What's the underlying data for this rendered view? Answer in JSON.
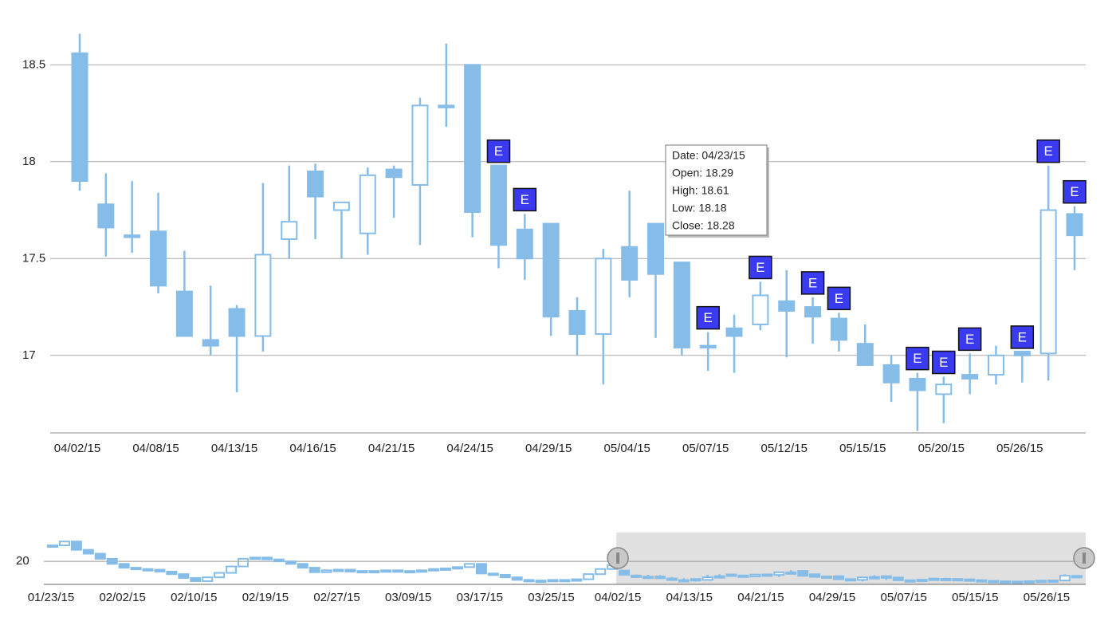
{
  "chart_data": [
    {
      "type": "candlestick",
      "categories": [
        "04/02/15",
        null,
        null,
        "04/08/15",
        null,
        null,
        "04/13/15",
        null,
        null,
        "04/16/15",
        null,
        null,
        "04/21/15",
        null,
        null,
        "04/24/15",
        null,
        null,
        "04/29/15",
        null,
        null,
        "05/04/15",
        null,
        null,
        "05/07/15",
        null,
        null,
        "05/12/15",
        null,
        null,
        "05/15/15",
        null,
        null,
        "05/20/15",
        null,
        null,
        "05/26/15",
        null,
        null
      ],
      "open": [
        18.56,
        17.78,
        17.62,
        17.64,
        17.33,
        17.08,
        17.24,
        17.1,
        17.6,
        17.95,
        17.75,
        17.63,
        17.96,
        17.88,
        18.29,
        18.5,
        17.98,
        17.65,
        17.68,
        17.23,
        17.11,
        17.56,
        17.68,
        17.48,
        17.05,
        17.14,
        17.16,
        17.28,
        17.25,
        17.19,
        17.06,
        16.95,
        16.88,
        16.8,
        16.9,
        16.9,
        17.02,
        17.01,
        17.73
      ],
      "high": [
        18.66,
        17.94,
        17.9,
        17.84,
        17.54,
        17.36,
        17.26,
        17.89,
        17.98,
        17.99,
        17.79,
        17.97,
        17.98,
        18.33,
        18.61,
        18.5,
        17.98,
        17.73,
        17.68,
        17.3,
        17.55,
        17.85,
        17.68,
        17.48,
        17.12,
        17.21,
        17.38,
        17.44,
        17.3,
        17.22,
        17.16,
        17.0,
        16.91,
        16.89,
        17.01,
        17.05,
        17.02,
        17.98,
        17.77
      ],
      "low": [
        17.85,
        17.51,
        17.53,
        17.32,
        17.1,
        17.0,
        16.81,
        17.02,
        17.5,
        17.6,
        17.5,
        17.52,
        17.71,
        17.57,
        18.18,
        17.61,
        17.45,
        17.39,
        17.1,
        17.0,
        16.85,
        17.3,
        17.09,
        17.0,
        16.92,
        16.91,
        17.13,
        16.99,
        17.06,
        17.02,
        16.95,
        16.76,
        16.61,
        16.65,
        16.8,
        16.85,
        16.86,
        16.87,
        17.44
      ],
      "close": [
        17.9,
        17.66,
        17.61,
        17.36,
        17.1,
        17.05,
        17.1,
        17.52,
        17.69,
        17.82,
        17.79,
        17.93,
        17.92,
        18.29,
        18.28,
        17.74,
        17.57,
        17.5,
        17.2,
        17.11,
        17.5,
        17.39,
        17.42,
        17.04,
        17.04,
        17.1,
        17.31,
        17.23,
        17.2,
        17.08,
        16.95,
        16.86,
        16.82,
        16.85,
        16.88,
        17.0,
        17.0,
        17.75,
        17.62
      ],
      "color": "#86bce8",
      "ylim": [
        16.6,
        18.67
      ],
      "yticks": [
        17,
        17.5,
        18,
        18.5
      ],
      "grid": true,
      "event_label": "E",
      "events": [
        16,
        17,
        24,
        26,
        28,
        29,
        32,
        33,
        34,
        36,
        37,
        38
      ],
      "tooltip": [
        "Date: 04/23/15",
        "Open: 18.29",
        "High: 18.61",
        "Low: 18.18",
        "Close: 18.28"
      ]
    },
    {
      "type": "step",
      "categories": [
        "01/23/15",
        null,
        null,
        null,
        null,
        null,
        "02/02/15",
        null,
        null,
        null,
        null,
        null,
        "02/10/15",
        null,
        null,
        null,
        null,
        null,
        "02/19/15",
        null,
        null,
        null,
        null,
        null,
        "02/27/15",
        null,
        null,
        null,
        null,
        null,
        "03/09/15",
        null,
        null,
        null,
        null,
        null,
        "03/17/15",
        null,
        null,
        null,
        null,
        null,
        "03/25/15",
        null,
        null,
        null,
        null,
        null
      ],
      "values": [
        22.5,
        23.1,
        21.8,
        21.2,
        20.4,
        19.6,
        19.0,
        18.8,
        18.7,
        18.4,
        18.0,
        17.4,
        16.9,
        17.5,
        18.2,
        19.2,
        20.4,
        20.6,
        20.3,
        20.0,
        19.6,
        19.0,
        18.3,
        18.6,
        18.7,
        18.4,
        18.5,
        18.5,
        18.6,
        18.5,
        18.5,
        18.6,
        18.8,
        18.9,
        19.1,
        19.6,
        18.1,
        17.9,
        17.5,
        17.1,
        17.0,
        17.0,
        17.1,
        17.0,
        17.2,
        18.0,
        18.8,
        19.4
      ],
      "color": "#86bce8",
      "ylim": [
        16.4,
        24.5
      ],
      "yticks": [
        20
      ],
      "grid": true
    }
  ]
}
